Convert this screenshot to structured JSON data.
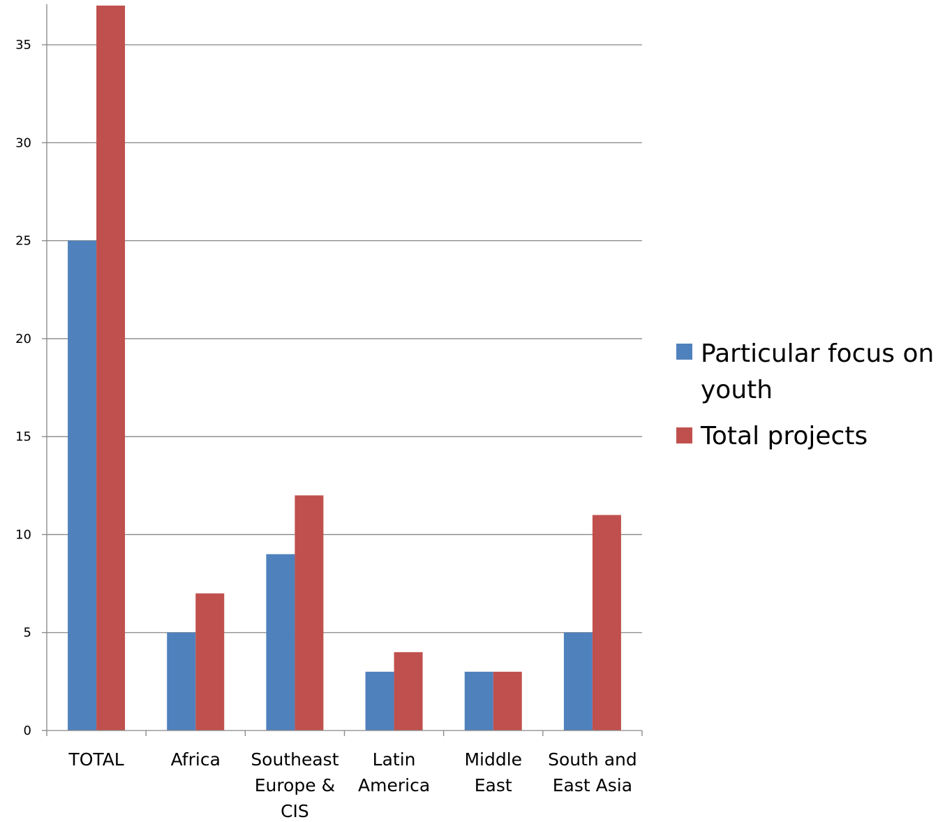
{
  "chart_data": {
    "type": "bar",
    "title": "",
    "xlabel": "",
    "ylabel": "",
    "categories": [
      "TOTAL",
      "Africa",
      "Southeast Europe & CIS",
      "Latin America",
      "Middle East",
      "South and East Asia"
    ],
    "category_label_lines": [
      [
        "TOTAL"
      ],
      [
        "Africa"
      ],
      [
        "Southeast",
        "Europe &",
        "CIS"
      ],
      [
        "Latin",
        "America"
      ],
      [
        "Middle",
        "East"
      ],
      [
        "South and",
        "East Asia"
      ]
    ],
    "series": [
      {
        "name": "Particular focus on youth",
        "name_lines": [
          "Particular focus on",
          "youth"
        ],
        "color": "#4F81BD",
        "values": [
          25,
          5,
          9,
          3,
          3,
          5
        ]
      },
      {
        "name": "Total projects",
        "name_lines": [
          "Total projects"
        ],
        "color": "#C0504D",
        "values": [
          37,
          7,
          12,
          4,
          3,
          11
        ]
      }
    ],
    "ylim": [
      0,
      37
    ],
    "yticks": [
      0,
      5,
      10,
      15,
      20,
      25,
      30,
      35
    ],
    "grid": true,
    "legend": "right"
  }
}
